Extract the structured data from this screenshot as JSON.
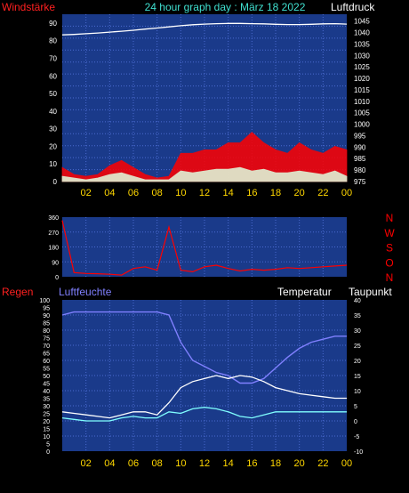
{
  "header": {
    "title": "24 hour graph day : März 18 2022",
    "left_label": "Windstärke",
    "right_label": "Luftdruck"
  },
  "panel2": {
    "direction_labels": [
      "N",
      "W",
      "S",
      "O",
      "N"
    ],
    "y_ticks": [
      "360",
      "270",
      "180",
      "90",
      "0"
    ]
  },
  "panel3": {
    "left_label": "Regen",
    "left2_label": "Luftfeuchte",
    "right_label": "Temperatur",
    "right2_label": "Taupunkt"
  },
  "x_ticks": [
    "02",
    "04",
    "06",
    "08",
    "10",
    "12",
    "14",
    "16",
    "18",
    "20",
    "22",
    "00"
  ],
  "colors": {
    "plot_bg": "#1a3a8a",
    "grid": "#4a6ad0",
    "axis_label": "#ffd700",
    "title": "#40e0d0",
    "red": "#ff0000",
    "white": "#ffffff",
    "humidity": "#8080ff",
    "dewpoint": "#80ffff",
    "windblue": "#4060ff"
  },
  "chart_data": [
    {
      "type": "line",
      "title": "24 hour graph day : März 18 2022",
      "ylabel_left": "Windstärke",
      "ylabel_right": "Luftdruck",
      "ylim_left": [
        0,
        95
      ],
      "yticks_left": [
        0,
        10,
        20,
        30,
        40,
        50,
        60,
        70,
        80,
        90
      ],
      "ylim_right": [
        975,
        1048
      ],
      "yticks_right": [
        975,
        980,
        985,
        990,
        995,
        1000,
        1005,
        1010,
        1015,
        1020,
        1025,
        1030,
        1035,
        1040,
        1045
      ],
      "x_hours": [
        0,
        1,
        2,
        3,
        4,
        5,
        6,
        7,
        8,
        9,
        10,
        11,
        12,
        13,
        14,
        15,
        16,
        17,
        18,
        19,
        20,
        21,
        22,
        23,
        24
      ],
      "series": [
        {
          "color": "#ffffff",
          "axis": "right",
          "values": [
            1039,
            1039.2,
            1039.5,
            1039.8,
            1040.2,
            1040.6,
            1041.0,
            1041.5,
            1042.0,
            1042.5,
            1043.0,
            1043.4,
            1043.7,
            1043.9,
            1044.0,
            1044.0,
            1043.9,
            1043.8,
            1043.6,
            1043.5,
            1043.5,
            1043.6,
            1043.8,
            1043.9,
            1043.7
          ]
        },
        {
          "color": "#ff0000",
          "axis": "left",
          "values": [
            8,
            4,
            3,
            4,
            9,
            12,
            8,
            4,
            2,
            3,
            16,
            16,
            18,
            18,
            22,
            22,
            28,
            22,
            18,
            16,
            22,
            18,
            16,
            20,
            18
          ]
        },
        {
          "color": "#ffffff",
          "axis": "left",
          "values": [
            3,
            2,
            1,
            2,
            4,
            5,
            3,
            1,
            1,
            1,
            6,
            5,
            6,
            7,
            7,
            8,
            6,
            7,
            5,
            5,
            6,
            5,
            4,
            6,
            3
          ]
        }
      ]
    },
    {
      "type": "line",
      "ylim": [
        0,
        360
      ],
      "yticks": [
        0,
        90,
        180,
        270,
        360
      ],
      "x_hours": [
        0,
        1,
        2,
        3,
        4,
        5,
        6,
        7,
        8,
        9,
        10,
        11,
        12,
        13,
        14,
        15,
        16,
        17,
        18,
        19,
        20,
        21,
        22,
        23,
        24
      ],
      "series": [
        {
          "color": "#ff0000",
          "values": [
            340,
            25,
            20,
            18,
            15,
            10,
            50,
            60,
            40,
            300,
            40,
            30,
            60,
            70,
            50,
            35,
            45,
            40,
            45,
            55,
            50,
            55,
            60,
            65,
            70
          ]
        }
      ]
    },
    {
      "type": "line",
      "ylabel_left": "Regen",
      "ylabel_left2": "Luftfeuchte",
      "ylabel_right": "Temperatur",
      "ylabel_right2": "Taupunkt",
      "ylim_left": [
        0,
        100
      ],
      "yticks_left": [
        0,
        5,
        10,
        15,
        20,
        25,
        30,
        35,
        40,
        45,
        50,
        55,
        60,
        65,
        70,
        75,
        80,
        85,
        90,
        95,
        100
      ],
      "ylim_right": [
        -10,
        40
      ],
      "yticks_right": [
        -10,
        -5,
        0,
        5,
        10,
        15,
        20,
        25,
        30,
        35,
        40
      ],
      "x_hours": [
        0,
        1,
        2,
        3,
        4,
        5,
        6,
        7,
        8,
        9,
        10,
        11,
        12,
        13,
        14,
        15,
        16,
        17,
        18,
        19,
        20,
        21,
        22,
        23,
        24
      ],
      "series": [
        {
          "color": "#8080ff",
          "axis": "left",
          "values": [
            90,
            92,
            92,
            92,
            92,
            92,
            92,
            92,
            92,
            90,
            72,
            60,
            56,
            52,
            50,
            45,
            45,
            48,
            55,
            62,
            68,
            72,
            74,
            76,
            76
          ]
        },
        {
          "color": "#ffffff",
          "axis": "right",
          "values": [
            3,
            2.5,
            2,
            1.5,
            1,
            2,
            3,
            3,
            2,
            6,
            11,
            13,
            14,
            15,
            14,
            15,
            14.5,
            13,
            11,
            10,
            9,
            8.5,
            8,
            7.5,
            7.5
          ]
        },
        {
          "color": "#80ffff",
          "axis": "right",
          "values": [
            1,
            0.5,
            0,
            0,
            0,
            1,
            1.5,
            1,
            1,
            3,
            2.5,
            4,
            4.5,
            4,
            3,
            1.5,
            1,
            2,
            3,
            3,
            3,
            3,
            3,
            3,
            3
          ]
        }
      ]
    }
  ]
}
